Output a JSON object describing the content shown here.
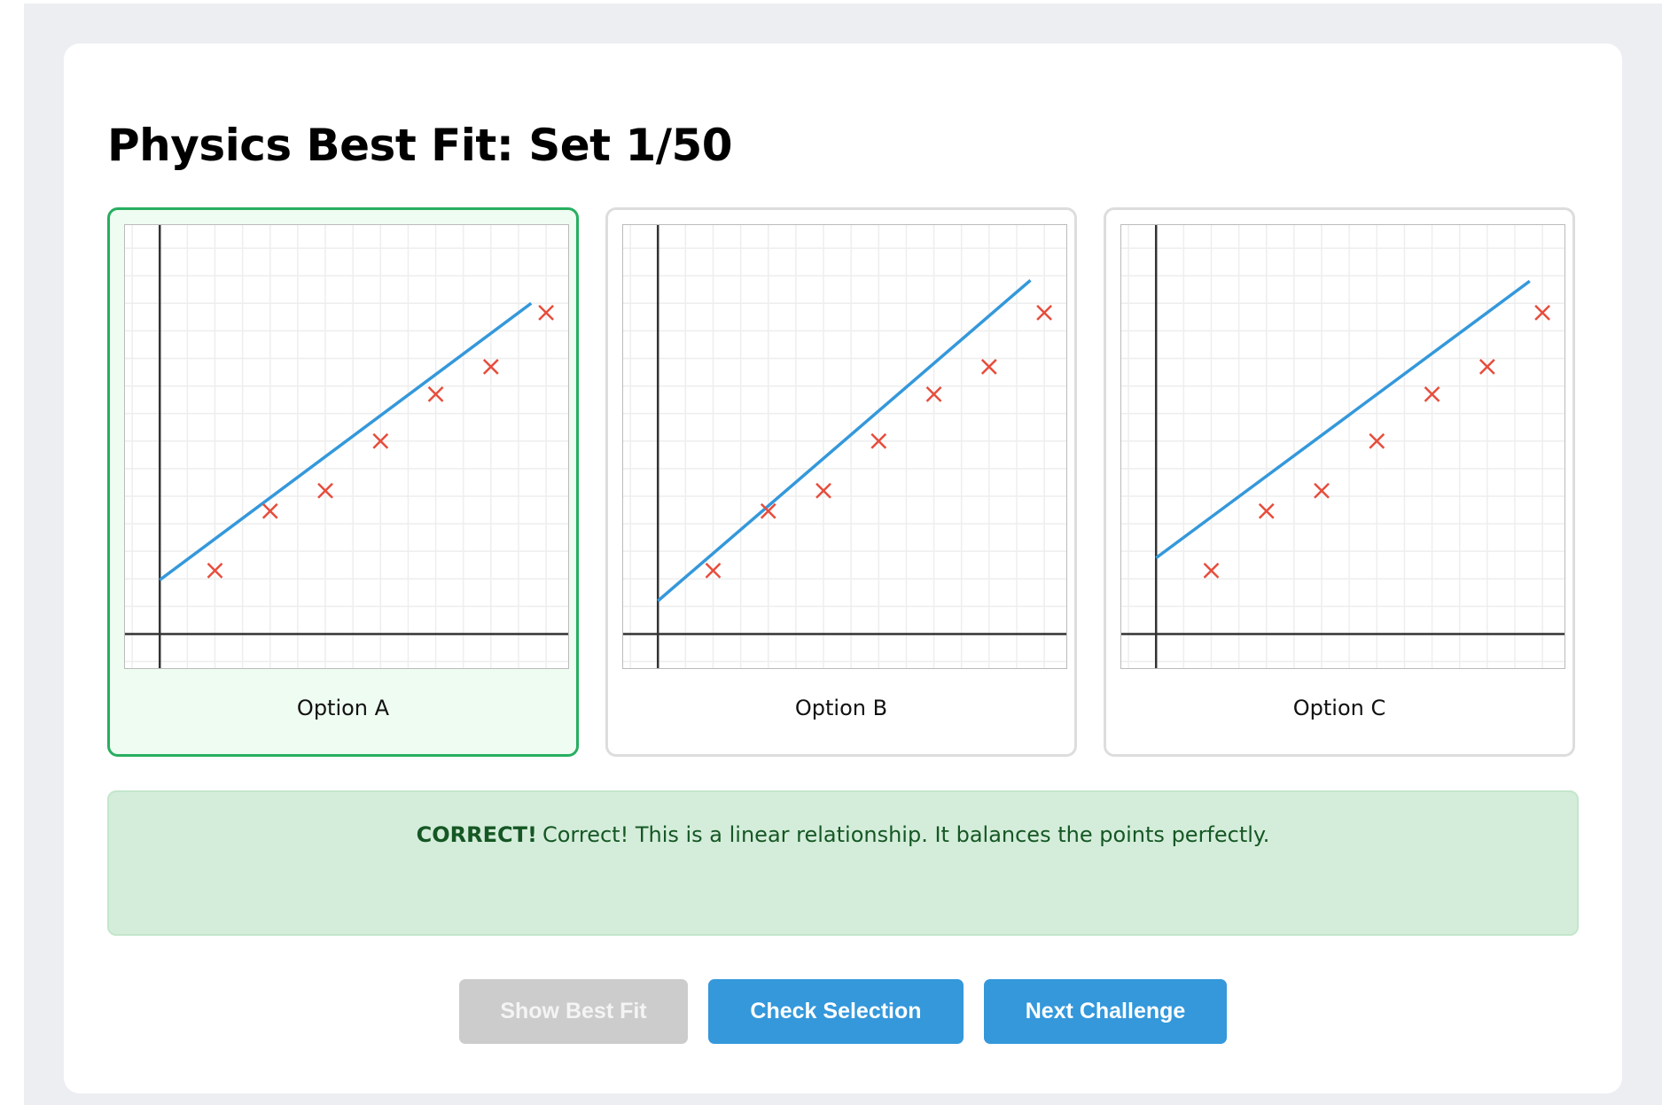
{
  "title": "Physics Best Fit: Set 1/50",
  "options": [
    {
      "label": "Option A",
      "selected": true
    },
    {
      "label": "Option B",
      "selected": false
    },
    {
      "label": "Option C",
      "selected": false
    }
  ],
  "feedback": {
    "status": "CORRECT!",
    "message": "Correct! This is a linear relationship. It balances the points perfectly."
  },
  "buttons": {
    "show_best_fit": "Show Best Fit",
    "check_selection": "Check Selection",
    "next_challenge": "Next Challenge"
  },
  "button_states": {
    "show_best_fit_disabled": true
  },
  "colors": {
    "accent": "#3498db",
    "selected": "#27ae60",
    "points": "#e74c3c",
    "fit_line": "#3498db",
    "feedback_bg": "#d4edda",
    "feedback_text": "#155724"
  },
  "chart_data": [
    {
      "type": "scatter",
      "name": "Option A",
      "grid": true,
      "xlim": [
        -0.63,
        7.4
      ],
      "ylim": [
        -0.62,
        7.42
      ],
      "points": {
        "x": [
          1,
          2,
          3,
          4,
          5,
          6,
          7
        ],
        "y": [
          1.15,
          2.23,
          2.6,
          3.5,
          4.35,
          4.85,
          5.83
        ]
      },
      "line": {
        "intercept": 0.98,
        "slope": 0.746,
        "x_end": 6.73
      }
    },
    {
      "type": "scatter",
      "name": "Option B",
      "grid": true,
      "xlim": [
        -0.63,
        7.4
      ],
      "ylim": [
        -0.62,
        7.42
      ],
      "points": {
        "x": [
          1,
          2,
          3,
          4,
          5,
          6,
          7
        ],
        "y": [
          1.15,
          2.23,
          2.6,
          3.5,
          4.35,
          4.85,
          5.83
        ]
      },
      "line": {
        "intercept": 0.6,
        "slope": 0.862,
        "x_end": 6.75
      }
    },
    {
      "type": "scatter",
      "name": "Option C",
      "grid": true,
      "xlim": [
        -0.63,
        7.4
      ],
      "ylim": [
        -0.62,
        7.42
      ],
      "points": {
        "x": [
          1,
          2,
          3,
          4,
          5,
          6,
          7
        ],
        "y": [
          1.15,
          2.23,
          2.6,
          3.5,
          4.35,
          4.85,
          5.83
        ]
      },
      "line": {
        "intercept": 1.38,
        "slope": 0.742,
        "x_end": 6.77
      }
    }
  ]
}
